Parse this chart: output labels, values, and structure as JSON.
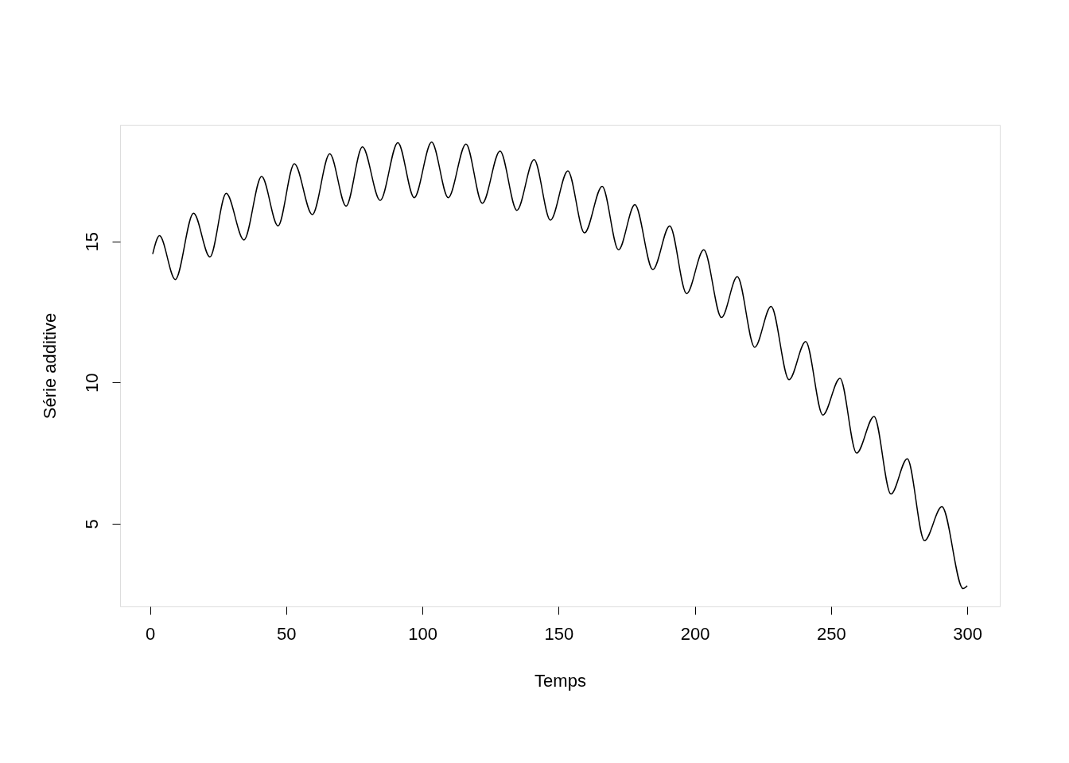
{
  "chart_data": {
    "type": "line",
    "xlabel": "Temps",
    "ylabel": "Série additive",
    "x": [
      1,
      3.5,
      9.3,
      16,
      22,
      28,
      34.5,
      41,
      47,
      53,
      59.6,
      66,
      72,
      78,
      84.5,
      91,
      97,
      103.4,
      109.5,
      116,
      122,
      128.5,
      134.7,
      141,
      147,
      153.4,
      159.5,
      166,
      172,
      178,
      184.6,
      190.8,
      197,
      203.3,
      209.8,
      215.6,
      222,
      228,
      234.6,
      240.7,
      247,
      253.3,
      259.4,
      265.8,
      272,
      278,
      284.3,
      290.7,
      298.5,
      300
    ],
    "series": [
      {
        "color": "#000000",
        "values": [
          14.55,
          15.2,
          13.65,
          16.0,
          14.45,
          16.7,
          15.05,
          17.3,
          15.55,
          17.75,
          15.95,
          18.1,
          16.25,
          18.35,
          16.45,
          18.5,
          16.55,
          18.52,
          16.55,
          18.45,
          16.35,
          18.2,
          16.1,
          17.9,
          15.75,
          17.5,
          15.3,
          16.95,
          14.7,
          16.3,
          14.0,
          15.55,
          13.15,
          14.7,
          12.3,
          13.75,
          11.25,
          12.7,
          10.1,
          11.45,
          8.85,
          10.15,
          7.5,
          8.8,
          6.05,
          7.3,
          4.4,
          5.6,
          2.7,
          2.8
        ]
      }
    ],
    "xlim": [
      -10.96,
      311.96
    ],
    "ylim": [
      2.07,
      19.13
    ],
    "xticks": [
      0,
      50,
      100,
      150,
      200,
      250,
      300
    ],
    "yticks": [
      5,
      10,
      15
    ],
    "grid": false,
    "marker": "none",
    "line_style": "solid"
  }
}
